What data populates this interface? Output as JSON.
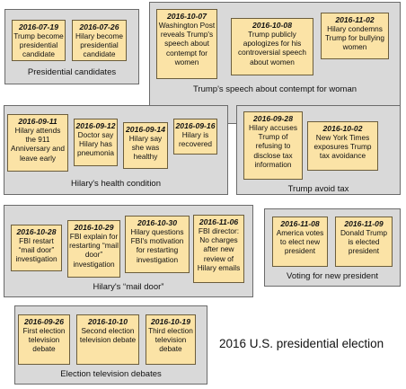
{
  "title": "2016 U.S. presidential election",
  "groups": [
    {
      "label": "Presidential candidates",
      "events": [
        {
          "date": "2016-07-19",
          "text": "Trump become presidential candidate"
        },
        {
          "date": "2016-07-26",
          "text": "Hilary become presidential candidate"
        }
      ]
    },
    {
      "label": "Trump's speech about contempt for woman",
      "events": [
        {
          "date": "2016-10-07",
          "text": "Washington Post reveals Trump's speech about contempt for women"
        },
        {
          "date": "2016-10-08",
          "text": "Trump publicly apologizes for his controversial speech about women"
        },
        {
          "date": "2016-11-02",
          "text": "Hilary condemns Trump for bullying women"
        }
      ]
    },
    {
      "label": "Hilary's health condition",
      "events": [
        {
          "date": "2016-09-11",
          "text": "Hilary attends the 911 Anniversary and leave early"
        },
        {
          "date": "2016-09-12",
          "text": "Doctor say Hilary has pneumonia"
        },
        {
          "date": "2016-09-14",
          "text": "Hilary say she was healthy"
        },
        {
          "date": "2016-09-16",
          "text": "Hilary is recovered"
        }
      ]
    },
    {
      "label": "Trump avoid tax",
      "events": [
        {
          "date": "2016-09-28",
          "text": "Hilary accuses Trump of refusing to disclose tax information"
        },
        {
          "date": "2016-10-02",
          "text": "New York Times exposures Trump tax avoidance"
        }
      ]
    },
    {
      "label": "Hilary's “mail door”",
      "events": [
        {
          "date": "2016-10-28",
          "text": "FBI restart “mail door” investigation"
        },
        {
          "date": "2016-10-29",
          "text": "FBI explain for restarting “mail door” investigation"
        },
        {
          "date": "2016-10-30",
          "text": "Hilary questions FBI's motivation for restarting investigation"
        },
        {
          "date": "2016-11-06",
          "text": "FBI director: No charges after new review of Hilary emails"
        }
      ]
    },
    {
      "label": "Voting for new president",
      "events": [
        {
          "date": "2016-11-08",
          "text": "America votes to elect new president"
        },
        {
          "date": "2016-11-09",
          "text": "Donald Trump is elected president"
        }
      ]
    },
    {
      "label": "Election television debates",
      "events": [
        {
          "date": "2016-09-26",
          "text": "First election television debate"
        },
        {
          "date": "2016-10-10",
          "text": "Second election television debate"
        },
        {
          "date": "2016-10-19",
          "text": "Third election television debate"
        }
      ]
    }
  ]
}
